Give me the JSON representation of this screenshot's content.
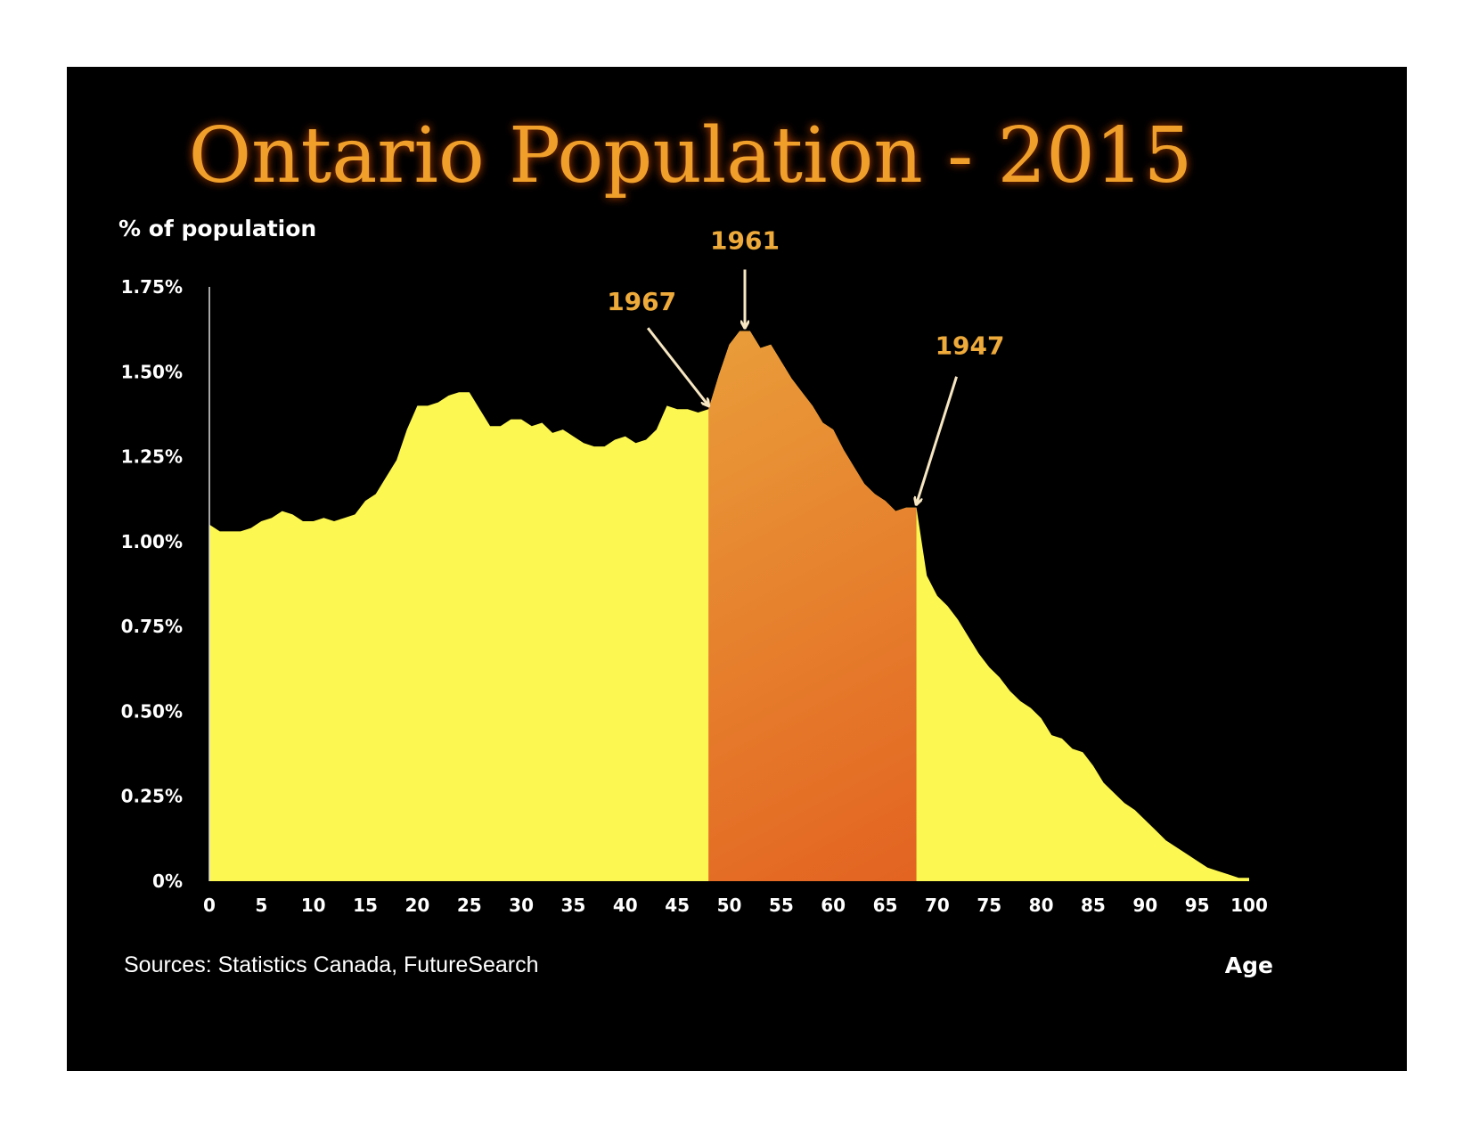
{
  "chart_data": {
    "type": "area",
    "title": "Ontario Population - 2015",
    "ylabel": "% of population",
    "xlabel": "Age",
    "source": "Sources: Statistics Canada, FutureSearch",
    "xlim": [
      0,
      100
    ],
    "ylim": [
      0,
      1.75
    ],
    "x_ticks": [
      0,
      5,
      10,
      15,
      20,
      25,
      30,
      35,
      40,
      45,
      50,
      55,
      60,
      65,
      70,
      75,
      80,
      85,
      90,
      95,
      100
    ],
    "x_tick_labels": [
      "0",
      "5",
      "10",
      "15",
      "20",
      "25",
      "30",
      "35",
      "40",
      "45",
      "50",
      "55",
      "60",
      "65",
      "70",
      "75",
      "80",
      "85",
      "90",
      "95",
      "100"
    ],
    "y_ticks": [
      0,
      0.25,
      0.5,
      0.75,
      1.0,
      1.25,
      1.5,
      1.75
    ],
    "y_tick_labels": [
      "0%",
      "0.25%",
      "0.50%",
      "0.75%",
      "1.00%",
      "1.25%",
      "1.50%",
      "1.75%"
    ],
    "grid": false,
    "series": [
      {
        "x": [
          0,
          1,
          2,
          3,
          4,
          5,
          6,
          7,
          8,
          9,
          10,
          11,
          12,
          13,
          14,
          15,
          16,
          17,
          18,
          19,
          20,
          21,
          22,
          23,
          24,
          25,
          26,
          27,
          28,
          29,
          30,
          31,
          32,
          33,
          34,
          35,
          36,
          37,
          38,
          39,
          40,
          41,
          42,
          43,
          44,
          45,
          46,
          47,
          48,
          49,
          50,
          51,
          52,
          53,
          54,
          55,
          56,
          57,
          58,
          59,
          60,
          61,
          62,
          63,
          64,
          65,
          66,
          67,
          68,
          69,
          70,
          71,
          72,
          73,
          74,
          75,
          76,
          77,
          78,
          79,
          80,
          81,
          82,
          83,
          84,
          85,
          86,
          87,
          88,
          89,
          90,
          91,
          92,
          93,
          94,
          95,
          96,
          97,
          98,
          99,
          100
        ],
        "values": [
          1.05,
          1.03,
          1.03,
          1.03,
          1.04,
          1.06,
          1.07,
          1.09,
          1.08,
          1.06,
          1.06,
          1.07,
          1.06,
          1.07,
          1.08,
          1.12,
          1.14,
          1.19,
          1.24,
          1.33,
          1.4,
          1.4,
          1.41,
          1.43,
          1.44,
          1.44,
          1.39,
          1.34,
          1.34,
          1.36,
          1.36,
          1.34,
          1.35,
          1.32,
          1.33,
          1.31,
          1.29,
          1.28,
          1.28,
          1.3,
          1.31,
          1.29,
          1.3,
          1.33,
          1.4,
          1.39,
          1.39,
          1.38,
          1.39,
          1.49,
          1.58,
          1.62,
          1.62,
          1.57,
          1.58,
          1.53,
          1.48,
          1.44,
          1.4,
          1.35,
          1.33,
          1.27,
          1.22,
          1.17,
          1.14,
          1.12,
          1.09,
          1.1,
          1.1,
          0.9,
          0.84,
          0.81,
          0.77,
          0.72,
          0.67,
          0.63,
          0.6,
          0.56,
          0.53,
          0.51,
          0.48,
          0.43,
          0.42,
          0.39,
          0.38,
          0.34,
          0.29,
          0.26,
          0.23,
          0.21,
          0.18,
          0.15,
          0.12,
          0.1,
          0.08,
          0.06,
          0.04,
          0.03,
          0.02,
          0.01,
          0.01
        ],
        "color": "#fdf751"
      }
    ],
    "highlight": {
      "x_start": 48,
      "x_end": 68,
      "color_top": "#ecb444",
      "color_bottom": "#e1541a"
    },
    "annotations": [
      {
        "label": "1967",
        "x": 48,
        "color": "#eeaa3a"
      },
      {
        "label": "1961",
        "x": 51.5,
        "color": "#eeaa3a"
      },
      {
        "label": "1947",
        "x": 68,
        "color": "#eeaa3a"
      }
    ],
    "colors": {
      "background": "#000000",
      "title": "#f0a02a",
      "axis_text": "#ffffff",
      "arrow": "#f6e6c2"
    }
  }
}
